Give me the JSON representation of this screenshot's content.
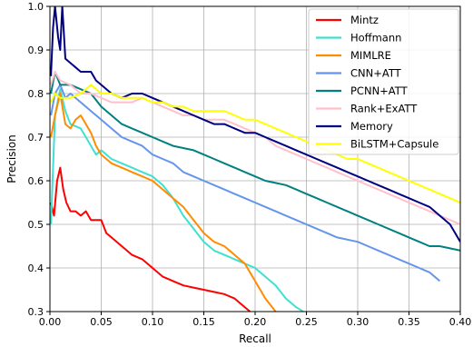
{
  "chart_data": {
    "type": "line",
    "title": "",
    "xlabel": "Recall",
    "ylabel": "Precision",
    "xlim": [
      0.0,
      0.4
    ],
    "ylim": [
      0.3,
      1.0
    ],
    "xticks": [
      "0.00",
      "0.05",
      "0.10",
      "0.15",
      "0.20",
      "0.25",
      "0.30",
      "0.35",
      "0.40"
    ],
    "yticks": [
      "0.3",
      "0.4",
      "0.5",
      "0.6",
      "0.7",
      "0.8",
      "0.9",
      "1.0"
    ],
    "grid": true,
    "legend_position": "top-right",
    "series": [
      {
        "name": "Mintz",
        "color": "#ff0000",
        "points": [
          [
            0.001,
            0.55
          ],
          [
            0.004,
            0.52
          ],
          [
            0.007,
            0.6
          ],
          [
            0.01,
            0.63
          ],
          [
            0.013,
            0.58
          ],
          [
            0.016,
            0.55
          ],
          [
            0.02,
            0.53
          ],
          [
            0.025,
            0.53
          ],
          [
            0.03,
            0.52
          ],
          [
            0.035,
            0.53
          ],
          [
            0.04,
            0.51
          ],
          [
            0.05,
            0.51
          ],
          [
            0.055,
            0.48
          ],
          [
            0.06,
            0.47
          ],
          [
            0.07,
            0.45
          ],
          [
            0.08,
            0.43
          ],
          [
            0.09,
            0.42
          ],
          [
            0.1,
            0.4
          ],
          [
            0.11,
            0.38
          ],
          [
            0.12,
            0.37
          ],
          [
            0.13,
            0.36
          ],
          [
            0.14,
            0.355
          ],
          [
            0.15,
            0.35
          ],
          [
            0.16,
            0.345
          ],
          [
            0.17,
            0.34
          ],
          [
            0.18,
            0.33
          ],
          [
            0.19,
            0.31
          ],
          [
            0.195,
            0.3
          ]
        ]
      },
      {
        "name": "Hoffmann",
        "color": "#40e0d0",
        "points": [
          [
            0.001,
            0.5
          ],
          [
            0.005,
            0.75
          ],
          [
            0.01,
            0.81
          ],
          [
            0.015,
            0.76
          ],
          [
            0.02,
            0.73
          ],
          [
            0.03,
            0.72
          ],
          [
            0.035,
            0.7
          ],
          [
            0.04,
            0.68
          ],
          [
            0.045,
            0.66
          ],
          [
            0.05,
            0.67
          ],
          [
            0.06,
            0.65
          ],
          [
            0.07,
            0.64
          ],
          [
            0.08,
            0.63
          ],
          [
            0.09,
            0.62
          ],
          [
            0.1,
            0.61
          ],
          [
            0.11,
            0.59
          ],
          [
            0.12,
            0.56
          ],
          [
            0.13,
            0.52
          ],
          [
            0.14,
            0.49
          ],
          [
            0.15,
            0.46
          ],
          [
            0.16,
            0.44
          ],
          [
            0.17,
            0.43
          ],
          [
            0.18,
            0.42
          ],
          [
            0.19,
            0.41
          ],
          [
            0.2,
            0.4
          ],
          [
            0.21,
            0.38
          ],
          [
            0.22,
            0.36
          ],
          [
            0.23,
            0.33
          ],
          [
            0.24,
            0.31
          ],
          [
            0.247,
            0.3
          ]
        ]
      },
      {
        "name": "MIMLRE",
        "color": "#ff8c00",
        "points": [
          [
            0.001,
            0.7
          ],
          [
            0.005,
            0.75
          ],
          [
            0.01,
            0.8
          ],
          [
            0.015,
            0.73
          ],
          [
            0.02,
            0.72
          ],
          [
            0.025,
            0.74
          ],
          [
            0.03,
            0.75
          ],
          [
            0.035,
            0.73
          ],
          [
            0.04,
            0.71
          ],
          [
            0.045,
            0.68
          ],
          [
            0.05,
            0.66
          ],
          [
            0.06,
            0.64
          ],
          [
            0.07,
            0.63
          ],
          [
            0.08,
            0.62
          ],
          [
            0.09,
            0.61
          ],
          [
            0.1,
            0.6
          ],
          [
            0.11,
            0.58
          ],
          [
            0.12,
            0.56
          ],
          [
            0.13,
            0.54
          ],
          [
            0.14,
            0.51
          ],
          [
            0.15,
            0.48
          ],
          [
            0.16,
            0.46
          ],
          [
            0.17,
            0.45
          ],
          [
            0.18,
            0.43
          ],
          [
            0.19,
            0.41
          ],
          [
            0.2,
            0.37
          ],
          [
            0.21,
            0.33
          ],
          [
            0.22,
            0.3
          ]
        ]
      },
      {
        "name": "CNN+ATT",
        "color": "#6495ed",
        "points": [
          [
            0.001,
            0.75
          ],
          [
            0.005,
            0.8
          ],
          [
            0.01,
            0.82
          ],
          [
            0.015,
            0.79
          ],
          [
            0.02,
            0.8
          ],
          [
            0.03,
            0.78
          ],
          [
            0.04,
            0.76
          ],
          [
            0.05,
            0.74
          ],
          [
            0.06,
            0.72
          ],
          [
            0.07,
            0.7
          ],
          [
            0.08,
            0.69
          ],
          [
            0.09,
            0.68
          ],
          [
            0.1,
            0.66
          ],
          [
            0.11,
            0.65
          ],
          [
            0.12,
            0.64
          ],
          [
            0.13,
            0.62
          ],
          [
            0.14,
            0.61
          ],
          [
            0.15,
            0.6
          ],
          [
            0.16,
            0.59
          ],
          [
            0.17,
            0.58
          ],
          [
            0.18,
            0.57
          ],
          [
            0.19,
            0.56
          ],
          [
            0.2,
            0.55
          ],
          [
            0.21,
            0.54
          ],
          [
            0.22,
            0.53
          ],
          [
            0.23,
            0.52
          ],
          [
            0.24,
            0.51
          ],
          [
            0.25,
            0.5
          ],
          [
            0.26,
            0.49
          ],
          [
            0.27,
            0.48
          ],
          [
            0.28,
            0.47
          ],
          [
            0.29,
            0.465
          ],
          [
            0.3,
            0.46
          ],
          [
            0.31,
            0.45
          ],
          [
            0.32,
            0.44
          ],
          [
            0.33,
            0.43
          ],
          [
            0.34,
            0.42
          ],
          [
            0.35,
            0.41
          ],
          [
            0.36,
            0.4
          ],
          [
            0.37,
            0.39
          ],
          [
            0.38,
            0.37
          ]
        ]
      },
      {
        "name": "PCNN+ATT",
        "color": "#008080",
        "points": [
          [
            0.001,
            0.8
          ],
          [
            0.005,
            0.85
          ],
          [
            0.01,
            0.82
          ],
          [
            0.02,
            0.82
          ],
          [
            0.03,
            0.81
          ],
          [
            0.04,
            0.8
          ],
          [
            0.05,
            0.77
          ],
          [
            0.06,
            0.75
          ],
          [
            0.07,
            0.73
          ],
          [
            0.08,
            0.72
          ],
          [
            0.09,
            0.71
          ],
          [
            0.1,
            0.7
          ],
          [
            0.11,
            0.69
          ],
          [
            0.12,
            0.68
          ],
          [
            0.13,
            0.675
          ],
          [
            0.14,
            0.67
          ],
          [
            0.15,
            0.66
          ],
          [
            0.16,
            0.65
          ],
          [
            0.17,
            0.64
          ],
          [
            0.18,
            0.63
          ],
          [
            0.19,
            0.62
          ],
          [
            0.2,
            0.61
          ],
          [
            0.21,
            0.6
          ],
          [
            0.22,
            0.595
          ],
          [
            0.23,
            0.59
          ],
          [
            0.24,
            0.58
          ],
          [
            0.25,
            0.57
          ],
          [
            0.26,
            0.56
          ],
          [
            0.27,
            0.55
          ],
          [
            0.28,
            0.54
          ],
          [
            0.29,
            0.53
          ],
          [
            0.3,
            0.52
          ],
          [
            0.31,
            0.51
          ],
          [
            0.32,
            0.5
          ],
          [
            0.33,
            0.49
          ],
          [
            0.34,
            0.48
          ],
          [
            0.35,
            0.47
          ],
          [
            0.36,
            0.46
          ],
          [
            0.37,
            0.45
          ],
          [
            0.38,
            0.45
          ],
          [
            0.39,
            0.445
          ],
          [
            0.4,
            0.44
          ]
        ]
      },
      {
        "name": "Rank+ExATT",
        "color": "#ffc0cb",
        "points": [
          [
            0.001,
            0.82
          ],
          [
            0.005,
            0.85
          ],
          [
            0.01,
            0.83
          ],
          [
            0.02,
            0.82
          ],
          [
            0.03,
            0.8
          ],
          [
            0.04,
            0.8
          ],
          [
            0.05,
            0.79
          ],
          [
            0.06,
            0.78
          ],
          [
            0.07,
            0.78
          ],
          [
            0.08,
            0.78
          ],
          [
            0.09,
            0.79
          ],
          [
            0.1,
            0.78
          ],
          [
            0.11,
            0.77
          ],
          [
            0.12,
            0.76
          ],
          [
            0.13,
            0.75
          ],
          [
            0.14,
            0.75
          ],
          [
            0.15,
            0.74
          ],
          [
            0.16,
            0.74
          ],
          [
            0.17,
            0.74
          ],
          [
            0.18,
            0.73
          ],
          [
            0.19,
            0.72
          ],
          [
            0.2,
            0.71
          ],
          [
            0.21,
            0.7
          ],
          [
            0.22,
            0.68
          ],
          [
            0.23,
            0.67
          ],
          [
            0.24,
            0.66
          ],
          [
            0.25,
            0.65
          ],
          [
            0.26,
            0.64
          ],
          [
            0.27,
            0.63
          ],
          [
            0.28,
            0.62
          ],
          [
            0.29,
            0.61
          ],
          [
            0.3,
            0.6
          ],
          [
            0.31,
            0.59
          ],
          [
            0.32,
            0.58
          ],
          [
            0.33,
            0.57
          ],
          [
            0.34,
            0.56
          ],
          [
            0.35,
            0.55
          ],
          [
            0.36,
            0.54
          ],
          [
            0.37,
            0.53
          ],
          [
            0.38,
            0.52
          ],
          [
            0.39,
            0.51
          ],
          [
            0.4,
            0.5
          ]
        ]
      },
      {
        "name": "Memory",
        "color": "#000080",
        "points": [
          [
            0.001,
            0.84
          ],
          [
            0.003,
            0.95
          ],
          [
            0.005,
            1.0
          ],
          [
            0.008,
            0.93
          ],
          [
            0.01,
            0.9
          ],
          [
            0.012,
            1.0
          ],
          [
            0.015,
            0.88
          ],
          [
            0.02,
            0.87
          ],
          [
            0.025,
            0.86
          ],
          [
            0.03,
            0.85
          ],
          [
            0.035,
            0.85
          ],
          [
            0.04,
            0.85
          ],
          [
            0.045,
            0.83
          ],
          [
            0.05,
            0.82
          ],
          [
            0.06,
            0.8
          ],
          [
            0.07,
            0.79
          ],
          [
            0.08,
            0.8
          ],
          [
            0.09,
            0.8
          ],
          [
            0.1,
            0.79
          ],
          [
            0.11,
            0.78
          ],
          [
            0.12,
            0.77
          ],
          [
            0.13,
            0.76
          ],
          [
            0.14,
            0.75
          ],
          [
            0.15,
            0.74
          ],
          [
            0.16,
            0.73
          ],
          [
            0.17,
            0.73
          ],
          [
            0.18,
            0.72
          ],
          [
            0.19,
            0.71
          ],
          [
            0.2,
            0.71
          ],
          [
            0.21,
            0.7
          ],
          [
            0.22,
            0.69
          ],
          [
            0.23,
            0.68
          ],
          [
            0.24,
            0.67
          ],
          [
            0.25,
            0.66
          ],
          [
            0.26,
            0.65
          ],
          [
            0.27,
            0.64
          ],
          [
            0.28,
            0.63
          ],
          [
            0.29,
            0.62
          ],
          [
            0.3,
            0.61
          ],
          [
            0.31,
            0.6
          ],
          [
            0.32,
            0.59
          ],
          [
            0.33,
            0.58
          ],
          [
            0.34,
            0.57
          ],
          [
            0.35,
            0.56
          ],
          [
            0.36,
            0.55
          ],
          [
            0.37,
            0.54
          ],
          [
            0.38,
            0.52
          ],
          [
            0.39,
            0.5
          ],
          [
            0.4,
            0.46
          ]
        ]
      },
      {
        "name": "BiLSTM+Capsule",
        "color": "#ffff00",
        "points": [
          [
            0.001,
            0.78
          ],
          [
            0.005,
            0.8
          ],
          [
            0.01,
            0.79
          ],
          [
            0.02,
            0.79
          ],
          [
            0.03,
            0.8
          ],
          [
            0.04,
            0.82
          ],
          [
            0.05,
            0.8
          ],
          [
            0.06,
            0.8
          ],
          [
            0.07,
            0.79
          ],
          [
            0.08,
            0.79
          ],
          [
            0.09,
            0.79
          ],
          [
            0.1,
            0.78
          ],
          [
            0.11,
            0.78
          ],
          [
            0.12,
            0.77
          ],
          [
            0.13,
            0.77
          ],
          [
            0.14,
            0.76
          ],
          [
            0.15,
            0.76
          ],
          [
            0.16,
            0.76
          ],
          [
            0.17,
            0.76
          ],
          [
            0.18,
            0.75
          ],
          [
            0.19,
            0.74
          ],
          [
            0.2,
            0.74
          ],
          [
            0.21,
            0.73
          ],
          [
            0.22,
            0.72
          ],
          [
            0.23,
            0.71
          ],
          [
            0.24,
            0.7
          ],
          [
            0.25,
            0.69
          ],
          [
            0.26,
            0.68
          ],
          [
            0.27,
            0.67
          ],
          [
            0.28,
            0.66
          ],
          [
            0.29,
            0.65
          ],
          [
            0.3,
            0.65
          ],
          [
            0.31,
            0.64
          ],
          [
            0.32,
            0.63
          ],
          [
            0.33,
            0.62
          ],
          [
            0.34,
            0.61
          ],
          [
            0.35,
            0.6
          ],
          [
            0.36,
            0.59
          ],
          [
            0.37,
            0.58
          ],
          [
            0.38,
            0.57
          ],
          [
            0.39,
            0.56
          ],
          [
            0.4,
            0.55
          ]
        ]
      }
    ]
  }
}
